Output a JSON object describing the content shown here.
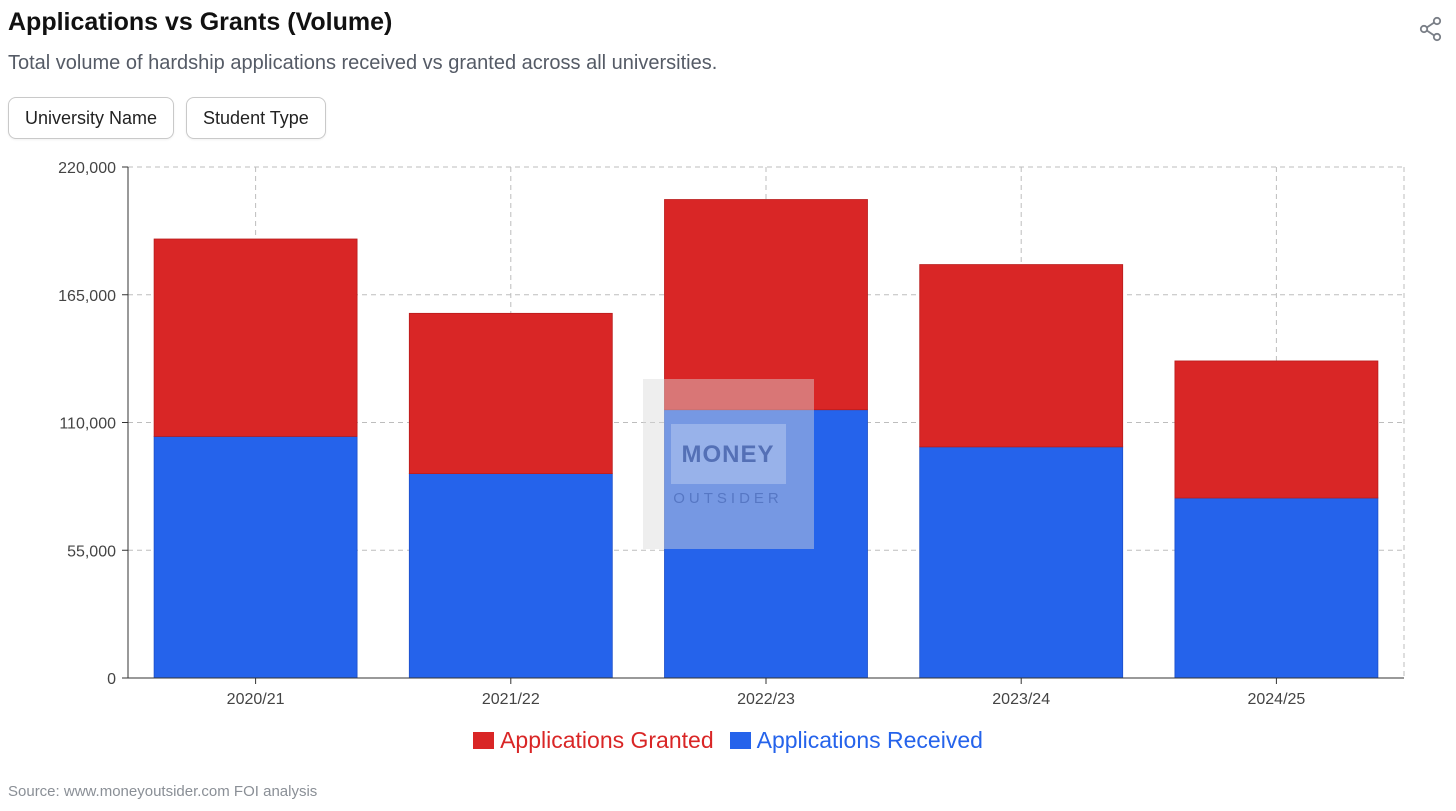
{
  "header": {
    "title": "Applications vs Grants (Volume)",
    "subtitle": "Total volume of hardship applications received vs granted across all universities."
  },
  "filters": [
    {
      "label": "University Name"
    },
    {
      "label": "Student Type"
    }
  ],
  "icons": {
    "share": "share-icon"
  },
  "watermark": {
    "line1": "MONEY",
    "line2": "OUTSIDER"
  },
  "source": "Source: www.moneyoutsider.com FOI analysis",
  "colors": {
    "granted": "#d92626",
    "received": "#2563eb",
    "grid": "#bdbdbd"
  },
  "chart_data": {
    "type": "bar",
    "stacked": true,
    "categories": [
      "2020/21",
      "2021/22",
      "2022/23",
      "2023/24",
      "2024/25"
    ],
    "series": [
      {
        "name": "Applications Received",
        "color": "#2563eb",
        "values": [
          104000,
          88000,
          115500,
          99500,
          77500
        ]
      },
      {
        "name": "Applications Granted",
        "color": "#d92626",
        "values": [
          85000,
          69000,
          90500,
          78500,
          59000
        ]
      }
    ],
    "ylim": [
      0,
      220000
    ],
    "yticks": [
      0,
      55000,
      110000,
      165000,
      220000
    ],
    "ytick_labels": [
      "0",
      "55,000",
      "110,000",
      "165,000",
      "220,000"
    ],
    "grid": true,
    "legend": {
      "placement": "bottom-center",
      "order": [
        "Applications Granted",
        "Applications Received"
      ]
    }
  }
}
